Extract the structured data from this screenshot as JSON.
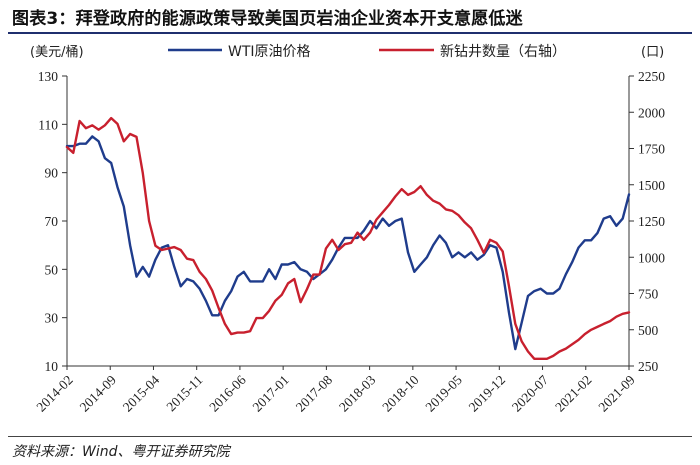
{
  "title": "图表3：拜登政府的能源政策导致美国页岩油企业资本开支意愿低迷",
  "source": "资料来源：Wind、粤开证券研究院",
  "colors": {
    "wti": "#1f3c8c",
    "rigs": "#c8202e",
    "title_rule": "#1f2f6e"
  },
  "chart_data": {
    "type": "line",
    "left_unit": "(美元/桶)",
    "right_unit": "(口)",
    "x_tick_labels": [
      "2014-02",
      "2014-09",
      "2015-04",
      "2015-11",
      "2016-06",
      "2017-01",
      "2017-08",
      "2018-03",
      "2018-10",
      "2019-05",
      "2019-12",
      "2020-07",
      "2021-02",
      "2021-09"
    ],
    "left_axis": {
      "ylim": [
        10,
        130
      ],
      "ticks": [
        10,
        30,
        50,
        70,
        90,
        110,
        130
      ]
    },
    "right_axis": {
      "ylim": [
        250,
        2250
      ],
      "ticks": [
        250,
        500,
        750,
        1000,
        1250,
        1500,
        1750,
        2000,
        2250
      ]
    },
    "legend_position": "top",
    "series": [
      {
        "name": "WTI原油价格",
        "axis": "left",
        "values": [
          101,
          101,
          102,
          102,
          105,
          103,
          96,
          94,
          84,
          76,
          60,
          47,
          51,
          47,
          54,
          59,
          60,
          51,
          43,
          46,
          45,
          42,
          37,
          31,
          31,
          37,
          41,
          47,
          49,
          45,
          45,
          45,
          50,
          46,
          52,
          52,
          53,
          50,
          49,
          46,
          48,
          50,
          54,
          59,
          63,
          63,
          63,
          66,
          70,
          67,
          71,
          68,
          70,
          71,
          57,
          49,
          52,
          55,
          60,
          64,
          61,
          55,
          57,
          55,
          57,
          54,
          56,
          60,
          59,
          49,
          32,
          17,
          28,
          39,
          41,
          42,
          40,
          40,
          42,
          48,
          53,
          59,
          62,
          62,
          65,
          71,
          72,
          68,
          71,
          81
        ]
      },
      {
        "name": "新钻井数量（右轴）",
        "axis": "right",
        "values": [
          1760,
          1720,
          1940,
          1890,
          1910,
          1880,
          1910,
          1960,
          1920,
          1800,
          1850,
          1830,
          1580,
          1250,
          1080,
          1050,
          1060,
          1070,
          1050,
          990,
          980,
          900,
          850,
          770,
          650,
          540,
          470,
          480,
          480,
          490,
          580,
          580,
          630,
          700,
          740,
          820,
          850,
          690,
          780,
          880,
          880,
          1060,
          1120,
          1050,
          1090,
          1100,
          1170,
          1120,
          1170,
          1260,
          1310,
          1360,
          1420,
          1470,
          1430,
          1450,
          1490,
          1430,
          1390,
          1370,
          1330,
          1320,
          1290,
          1240,
          1200,
          1120,
          1030,
          1120,
          1100,
          1040,
          800,
          540,
          420,
          350,
          300,
          300,
          300,
          320,
          350,
          370,
          400,
          430,
          470,
          500,
          520,
          540,
          560,
          590,
          610,
          620
        ]
      }
    ]
  }
}
